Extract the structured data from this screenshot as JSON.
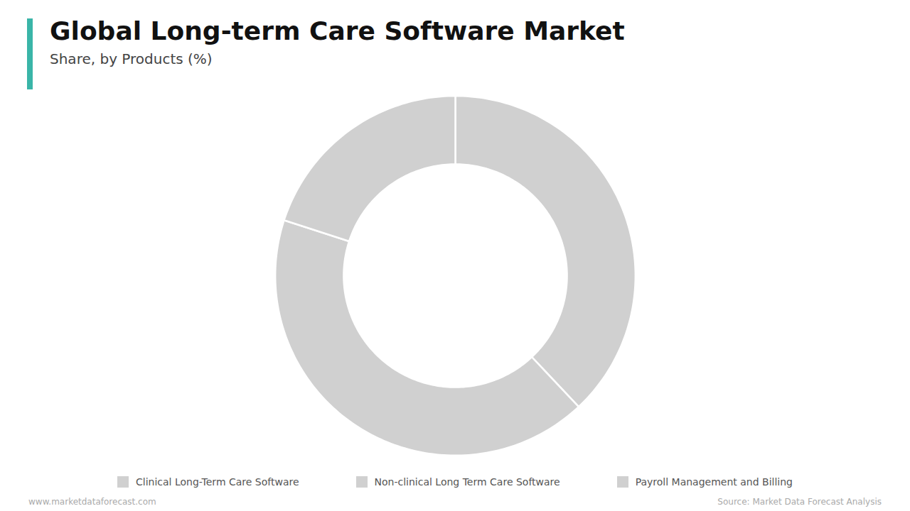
{
  "chart_data": {
    "type": "donut",
    "title": "Global Long-term Care Software Market",
    "subtitle": "Share, by Products (%)",
    "categories": [
      "Clinical Long-Term Care Software",
      "Non-clinical Long Term Care Software",
      "Payroll Management and Billing"
    ],
    "values": [
      38,
      42,
      20
    ],
    "color": "#d0d0d0",
    "legend": "bottom",
    "annotations": [
      "www.marketdataforecast.com",
      "Source: Market Data Forecast Analysis"
    ]
  }
}
